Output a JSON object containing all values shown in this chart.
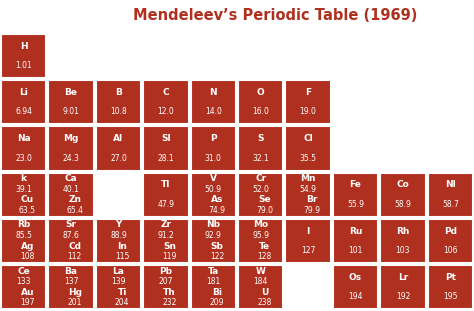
{
  "title": "Mendeleev’s Periodic Table (1969)",
  "title_color": "#b03020",
  "bg_color": "#ffffff",
  "cell_color": "#b03020",
  "text_color": "#ffffff",
  "border_color": "#ffffff",
  "figsize": [
    4.74,
    3.11
  ],
  "dpi": 100,
  "cells": [
    {
      "row": 0,
      "col": 0,
      "lines": [
        "H",
        "1.01"
      ]
    },
    {
      "row": 1,
      "col": 0,
      "lines": [
        "Li",
        "6.94"
      ]
    },
    {
      "row": 1,
      "col": 1,
      "lines": [
        "Be",
        "9.01"
      ]
    },
    {
      "row": 1,
      "col": 2,
      "lines": [
        "B",
        "10.8"
      ]
    },
    {
      "row": 1,
      "col": 3,
      "lines": [
        "C",
        "12.0"
      ]
    },
    {
      "row": 1,
      "col": 4,
      "lines": [
        "N",
        "14.0"
      ]
    },
    {
      "row": 1,
      "col": 5,
      "lines": [
        "O",
        "16.0"
      ]
    },
    {
      "row": 1,
      "col": 6,
      "lines": [
        "F",
        "19.0"
      ]
    },
    {
      "row": 2,
      "col": 0,
      "lines": [
        "Na",
        "23.0"
      ]
    },
    {
      "row": 2,
      "col": 1,
      "lines": [
        "Mg",
        "24.3"
      ]
    },
    {
      "row": 2,
      "col": 2,
      "lines": [
        "Al",
        "27.0"
      ]
    },
    {
      "row": 2,
      "col": 3,
      "lines": [
        "Sl",
        "28.1"
      ]
    },
    {
      "row": 2,
      "col": 4,
      "lines": [
        "P",
        "31.0"
      ]
    },
    {
      "row": 2,
      "col": 5,
      "lines": [
        "S",
        "32.1"
      ]
    },
    {
      "row": 2,
      "col": 6,
      "lines": [
        "Cl",
        "35.5"
      ]
    },
    {
      "row": 3,
      "col": 0,
      "lines": [
        "k",
        "39.1",
        "Cu",
        "63.5"
      ]
    },
    {
      "row": 3,
      "col": 1,
      "lines": [
        "Ca",
        "40.1",
        "Zn",
        "65.4"
      ]
    },
    {
      "row": 3,
      "col": 2,
      "lines": [
        "",
        ""
      ]
    },
    {
      "row": 3,
      "col": 3,
      "lines": [
        "Tl",
        "47.9"
      ]
    },
    {
      "row": 3,
      "col": 4,
      "lines": [
        "V",
        "50.9",
        "As",
        "74.9"
      ]
    },
    {
      "row": 3,
      "col": 5,
      "lines": [
        "Cr",
        "52.0",
        "Se",
        "79.0"
      ]
    },
    {
      "row": 3,
      "col": 6,
      "lines": [
        "Mn",
        "54.9",
        "Br",
        "79.9"
      ]
    },
    {
      "row": 3,
      "col": 7,
      "lines": [
        "Fe",
        "55.9"
      ]
    },
    {
      "row": 3,
      "col": 8,
      "lines": [
        "Co",
        "58.9"
      ]
    },
    {
      "row": 3,
      "col": 9,
      "lines": [
        "Nl",
        "58.7"
      ]
    },
    {
      "row": 4,
      "col": 0,
      "lines": [
        "Rb",
        "85.5",
        "Ag",
        "108"
      ]
    },
    {
      "row": 4,
      "col": 1,
      "lines": [
        "Sr",
        "87.6",
        "Cd",
        "112"
      ]
    },
    {
      "row": 4,
      "col": 2,
      "lines": [
        "Y",
        "88.9",
        "In",
        "115"
      ]
    },
    {
      "row": 4,
      "col": 3,
      "lines": [
        "Zr",
        "91.2",
        "Sn",
        "119"
      ]
    },
    {
      "row": 4,
      "col": 4,
      "lines": [
        "Nb",
        "92.9",
        "Sb",
        "122"
      ]
    },
    {
      "row": 4,
      "col": 5,
      "lines": [
        "Mo",
        "95.9",
        "Te",
        "128"
      ]
    },
    {
      "row": 4,
      "col": 6,
      "lines": [
        "I",
        "127"
      ]
    },
    {
      "row": 4,
      "col": 7,
      "lines": [
        "Ru",
        "101"
      ]
    },
    {
      "row": 4,
      "col": 8,
      "lines": [
        "Rh",
        "103"
      ]
    },
    {
      "row": 4,
      "col": 9,
      "lines": [
        "Pd",
        "106"
      ]
    },
    {
      "row": 5,
      "col": 0,
      "lines": [
        "Ce",
        "133",
        "Au",
        "197"
      ]
    },
    {
      "row": 5,
      "col": 1,
      "lines": [
        "Ba",
        "137",
        "Hg",
        "201"
      ]
    },
    {
      "row": 5,
      "col": 2,
      "lines": [
        "La",
        "139",
        "Ti",
        "204"
      ]
    },
    {
      "row": 5,
      "col": 3,
      "lines": [
        "Pb",
        "207",
        "Th",
        "232"
      ]
    },
    {
      "row": 5,
      "col": 4,
      "lines": [
        "Ta",
        "181",
        "Bi",
        "209"
      ]
    },
    {
      "row": 5,
      "col": 5,
      "lines": [
        "W",
        "184",
        "U",
        "238"
      ]
    },
    {
      "row": 5,
      "col": 6,
      "lines": [
        "",
        ""
      ]
    },
    {
      "row": 5,
      "col": 7,
      "lines": [
        "Os",
        "194"
      ]
    },
    {
      "row": 5,
      "col": 8,
      "lines": [
        "Lr",
        "192"
      ]
    },
    {
      "row": 5,
      "col": 9,
      "lines": [
        "Pt",
        "195"
      ]
    }
  ]
}
